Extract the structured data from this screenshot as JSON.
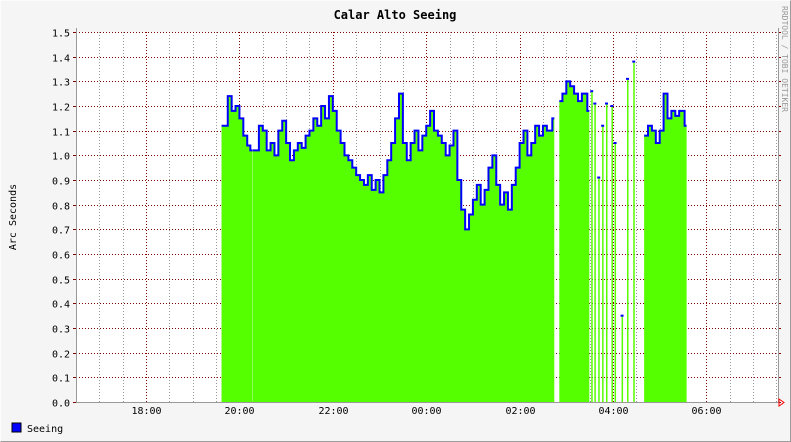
{
  "chart_data": {
    "type": "area",
    "title": "Calar Alto Seeing",
    "ylabel": "Arc Seconds",
    "xlabel": "",
    "watermark": "RRDTOOL / TOBI OETIKER",
    "ylim": [
      0.0,
      1.5
    ],
    "yticks": [
      "0.0",
      "0.1",
      "0.2",
      "0.3",
      "0.4",
      "0.5",
      "0.6",
      "0.7",
      "0.8",
      "0.9",
      "1.0",
      "1.1",
      "1.2",
      "1.3",
      "1.4",
      "1.5"
    ],
    "xlim": [
      "16:30",
      "07:32"
    ],
    "xticks": [
      "18:00",
      "20:00",
      "22:00",
      "00:00",
      "02:00",
      "04:00",
      "06:00"
    ],
    "grid": true,
    "legend_position": "bottom-left",
    "colors": {
      "area": "#55ff00",
      "line": "#0000ff",
      "major_grid": "#800000",
      "minor_grid": "#999999",
      "background": "#f5f5f5",
      "plot": "#ffffff"
    },
    "series": [
      {
        "name": "Seeing",
        "segments": [
          [
            [
              "19:37",
              1.12
            ],
            [
              "19:45",
              1.24
            ],
            [
              "19:50",
              1.18
            ],
            [
              "19:55",
              1.2
            ],
            [
              "20:00",
              1.15
            ],
            [
              "20:05",
              1.08
            ],
            [
              "20:10",
              1.04
            ],
            [
              "20:14",
              1.02
            ]
          ],
          [
            [
              "20:17",
              1.02
            ],
            [
              "20:25",
              1.12
            ],
            [
              "20:30",
              1.1
            ],
            [
              "20:35",
              1.02
            ],
            [
              "20:40",
              1.05
            ],
            [
              "20:45",
              1.0
            ],
            [
              "20:50",
              1.1
            ],
            [
              "20:55",
              1.14
            ],
            [
              "21:00",
              1.05
            ],
            [
              "21:05",
              0.98
            ],
            [
              "21:10",
              1.02
            ],
            [
              "21:15",
              1.05
            ],
            [
              "21:20",
              1.03
            ],
            [
              "21:25",
              1.08
            ],
            [
              "21:30",
              1.1
            ],
            [
              "21:35",
              1.15
            ],
            [
              "21:40",
              1.12
            ],
            [
              "21:45",
              1.2
            ],
            [
              "21:50",
              1.15
            ],
            [
              "21:55",
              1.24
            ],
            [
              "22:00",
              1.18
            ],
            [
              "22:05",
              1.1
            ],
            [
              "22:10",
              1.05
            ],
            [
              "22:15",
              1.0
            ],
            [
              "22:20",
              0.98
            ],
            [
              "22:25",
              0.95
            ],
            [
              "22:30",
              0.92
            ],
            [
              "22:35",
              0.9
            ],
            [
              "22:40",
              0.88
            ],
            [
              "22:45",
              0.92
            ],
            [
              "22:50",
              0.86
            ],
            [
              "22:55",
              0.9
            ],
            [
              "23:00",
              0.85
            ],
            [
              "23:05",
              0.92
            ],
            [
              "23:10",
              0.98
            ],
            [
              "23:15",
              1.05
            ],
            [
              "23:20",
              1.15
            ],
            [
              "23:25",
              1.25
            ],
            [
              "23:30",
              1.05
            ],
            [
              "23:35",
              0.98
            ],
            [
              "23:40",
              1.05
            ],
            [
              "23:45",
              1.1
            ],
            [
              "23:50",
              1.02
            ],
            [
              "23:55",
              1.08
            ],
            [
              "00:00",
              1.12
            ],
            [
              "00:05",
              1.18
            ],
            [
              "00:10",
              1.1
            ],
            [
              "00:15",
              1.08
            ],
            [
              "00:20",
              1.05
            ],
            [
              "00:25",
              1.0
            ],
            [
              "00:30",
              1.04
            ],
            [
              "00:35",
              1.1
            ],
            [
              "00:40",
              0.9
            ],
            [
              "00:45",
              0.78
            ],
            [
              "00:50",
              0.7
            ],
            [
              "00:55",
              0.76
            ],
            [
              "01:00",
              0.82
            ],
            [
              "01:05",
              0.88
            ],
            [
              "01:10",
              0.8
            ],
            [
              "01:15",
              0.86
            ],
            [
              "01:20",
              0.95
            ],
            [
              "01:25",
              1.0
            ],
            [
              "01:30",
              0.88
            ],
            [
              "01:35",
              0.8
            ],
            [
              "01:40",
              0.85
            ],
            [
              "01:45",
              0.78
            ],
            [
              "01:50",
              0.88
            ],
            [
              "01:55",
              0.95
            ],
            [
              "02:00",
              1.05
            ],
            [
              "02:05",
              1.1
            ],
            [
              "02:10",
              1.0
            ],
            [
              "02:15",
              1.05
            ],
            [
              "02:20",
              1.12
            ],
            [
              "02:25",
              1.08
            ],
            [
              "02:30",
              1.12
            ],
            [
              "02:35",
              1.1
            ],
            [
              "02:42",
              1.15
            ]
          ],
          [
            [
              "02:51",
              1.22
            ],
            [
              "02:55",
              1.25
            ],
            [
              "03:00",
              1.3
            ],
            [
              "03:05",
              1.28
            ],
            [
              "03:10",
              1.25
            ],
            [
              "03:15",
              1.22
            ],
            [
              "03:20",
              1.25
            ],
            [
              "03:27",
              1.18
            ]
          ],
          [
            [
              "04:40",
              1.08
            ],
            [
              "04:45",
              1.12
            ],
            [
              "04:50",
              1.1
            ],
            [
              "04:55",
              1.05
            ],
            [
              "05:00",
              1.1
            ],
            [
              "05:05",
              1.25
            ],
            [
              "05:10",
              1.15
            ],
            [
              "05:15",
              1.18
            ],
            [
              "05:20",
              1.16
            ],
            [
              "05:25",
              1.18
            ],
            [
              "05:32",
              1.12
            ]
          ]
        ],
        "spikes": [
          [
            "03:32",
            1.26
          ],
          [
            "03:36",
            1.21
          ],
          [
            "03:41",
            0.91
          ],
          [
            "03:46",
            1.12
          ],
          [
            "03:51",
            1.21
          ],
          [
            "03:58",
            1.2
          ],
          [
            "04:02",
            1.05
          ],
          [
            "04:11",
            0.35
          ],
          [
            "04:18",
            1.31
          ],
          [
            "04:26",
            1.38
          ]
        ]
      }
    ]
  },
  "legend": {
    "items": [
      {
        "label": "Seeing",
        "color": "#0000ff"
      }
    ]
  }
}
